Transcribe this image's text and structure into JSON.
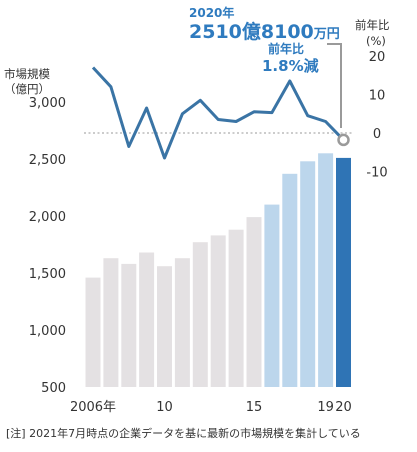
{
  "chart_data": {
    "type": "bar+line",
    "left_axis": {
      "title_line1": "市場規模",
      "title_line2": "（億円）",
      "ylim": [
        500,
        3000
      ],
      "ticks": [
        500,
        1000,
        1500,
        2000,
        2500,
        3000
      ],
      "tick_labels": [
        "500",
        "1,000",
        "1,500",
        "2,000",
        "2,500",
        "3,000"
      ]
    },
    "right_axis": {
      "title_line1": "前年比",
      "title_line2": "(%)",
      "ylim": [
        -10,
        20
      ],
      "ticks": [
        -10,
        0,
        10,
        20
      ],
      "tick_labels": [
        "-10",
        "0",
        "10",
        "20"
      ]
    },
    "x_axis": {
      "years": [
        2006,
        2007,
        2008,
        2009,
        2010,
        2011,
        2012,
        2013,
        2014,
        2015,
        2016,
        2017,
        2018,
        2019,
        2020
      ],
      "tick_labels": [
        {
          "year": 2006,
          "label": "2006年"
        },
        {
          "year": 2010,
          "label": "10"
        },
        {
          "year": 2015,
          "label": "15"
        },
        {
          "year": 2019,
          "label": "19"
        },
        {
          "year": 2020,
          "label": "20"
        }
      ]
    },
    "bars": {
      "name": "市場規模",
      "values": [
        1460,
        1630,
        1580,
        1680,
        1560,
        1630,
        1770,
        1830,
        1880,
        1990,
        2100,
        2370,
        2480,
        2550,
        2510
      ],
      "colors": [
        "#e4e1e3",
        "#e4e1e3",
        "#e4e1e3",
        "#e4e1e3",
        "#e4e1e3",
        "#e4e1e3",
        "#e4e1e3",
        "#e4e1e3",
        "#e4e1e3",
        "#e4e1e3",
        "#bcd6ec",
        "#bcd6ec",
        "#bcd6ec",
        "#bcd6ec",
        "#2f74b5"
      ]
    },
    "line": {
      "name": "前年比",
      "values": [
        17,
        12,
        -3.5,
        6.5,
        -6.5,
        5,
        8.5,
        3.5,
        3,
        5.5,
        5.3,
        13.5,
        4.5,
        3,
        -1.8
      ],
      "color": "#3a74a5",
      "zero_line": true
    },
    "callout": {
      "year_label": "2020年",
      "value_number": "2510億8100",
      "value_unit": "万円",
      "change_label": "前年比",
      "change_value": "1.8%減"
    }
  },
  "note": "[注] 2021年7月時点の企業データを基に最新の市場規模を集計している"
}
